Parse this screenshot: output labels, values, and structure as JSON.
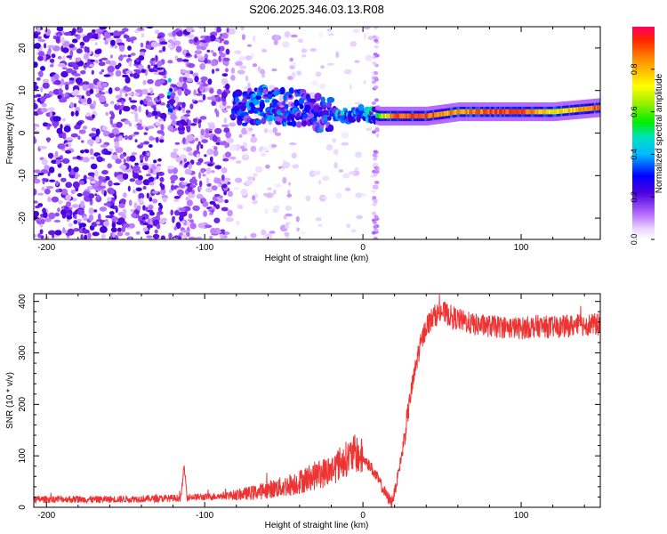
{
  "title": "S206.2025.346.03.13.R08",
  "chart_data": [
    {
      "type": "heatmap",
      "xlabel": "Height of straight line (km)",
      "ylabel": "Frequency (Hz)",
      "xlim": [
        -208,
        150
      ],
      "ylim": [
        -25,
        25
      ],
      "xticks": [
        -200,
        -100,
        0,
        100
      ],
      "yticks": [
        -20,
        -10,
        0,
        10,
        20
      ],
      "ridge": {
        "description": "dominant frequency track",
        "x": [
          -80,
          -70,
          -60,
          -50,
          -40,
          -30,
          -20,
          -10,
          0,
          10,
          20,
          40,
          60,
          80,
          100,
          120,
          150
        ],
        "frequency_hz": [
          6,
          6,
          7,
          6,
          6,
          5,
          4,
          4,
          5,
          4,
          4,
          4,
          5,
          5,
          5,
          5,
          6
        ],
        "peak_amplitude": [
          0.3,
          0.35,
          0.35,
          0.35,
          0.3,
          0.3,
          0.35,
          0.45,
          0.35,
          0.6,
          0.9,
          0.9,
          0.8,
          0.9,
          0.9,
          0.7,
          0.9
        ]
      }
    },
    {
      "type": "colorbar",
      "label": "Normalized spectral amplitude",
      "range": [
        0,
        1
      ],
      "ticks": [
        "0.0",
        "0.2",
        "0.4",
        "0.6",
        "0.8"
      ]
    },
    {
      "type": "line",
      "xlabel": "Height of straight line (km)",
      "ylabel": "SNR (10 * v/v)",
      "xlim": [
        -208,
        150
      ],
      "ylim": [
        0,
        415
      ],
      "xticks": [
        -200,
        -100,
        0,
        100
      ],
      "yticks": [
        0,
        100,
        200,
        300,
        400
      ],
      "color": "#ee3333",
      "series": [
        {
          "name": "SNR",
          "x": [
            -208,
            -190,
            -170,
            -150,
            -130,
            -115,
            -113,
            -111,
            -100,
            -80,
            -70,
            -60,
            -50,
            -40,
            -30,
            -20,
            -15,
            -10,
            -5,
            0,
            5,
            10,
            15,
            18,
            20,
            25,
            30,
            35,
            40,
            45,
            50,
            60,
            70,
            80,
            90,
            100,
            110,
            120,
            130,
            140,
            150
          ],
          "y": [
            15,
            16,
            15,
            16,
            17,
            18,
            80,
            20,
            20,
            24,
            28,
            34,
            40,
            50,
            62,
            72,
            85,
            95,
            105,
            95,
            78,
            52,
            22,
            10,
            28,
            110,
            215,
            300,
            352,
            372,
            380,
            365,
            355,
            352,
            350,
            348,
            352,
            350,
            352,
            355,
            355
          ]
        }
      ]
    }
  ]
}
